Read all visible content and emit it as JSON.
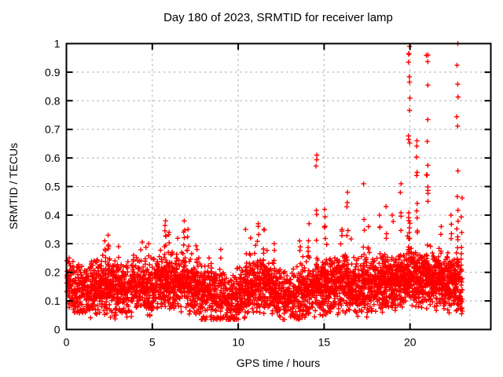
{
  "chart": {
    "title": "Day 180 of 2023, SRMTID for receiver lamp",
    "xlabel": "GPS time / hours",
    "ylabel": "SRMTID / TECUs",
    "colors": {
      "marker": "#ff0000",
      "grid": "#a8a8a8",
      "axis": "#000000",
      "text": "#000000",
      "background": "#ffffff"
    }
  },
  "chart_data": {
    "type": "scatter",
    "title": "Day 180 of 2023, SRMTID for receiver lamp",
    "xlabel": "GPS time / hours",
    "ylabel": "SRMTID / TECUs",
    "xlim": [
      0,
      24.7
    ],
    "ylim": [
      0,
      1
    ],
    "xticks": [
      0,
      5,
      10,
      15,
      20
    ],
    "xtick_labels": [
      "0",
      "5",
      "10",
      "15",
      "20"
    ],
    "yticks": [
      0,
      0.1,
      0.2,
      0.3,
      0.4,
      0.5,
      0.6,
      0.7,
      0.8,
      0.9,
      1
    ],
    "ytick_labels": [
      "0",
      "0.1",
      "0.2",
      "0.3",
      "0.4",
      "0.5",
      "0.6",
      "0.7",
      "0.8",
      "0.9",
      "1"
    ],
    "grid": true,
    "grid_style": "dashed",
    "legend": "none",
    "marker": "plus",
    "marker_color": "#ff0000",
    "marker_size_px": 7,
    "data_hours_range": [
      0,
      23.05
    ],
    "baseline_envelope": {
      "description": "dense scatter band of SRMTID values; mean level sampled every 0.5 h, triangular spread about the mean",
      "step_hours": 0.5,
      "mean": [
        0.15,
        0.14,
        0.125,
        0.14,
        0.155,
        0.15,
        0.14,
        0.13,
        0.14,
        0.15,
        0.15,
        0.16,
        0.16,
        0.165,
        0.165,
        0.14,
        0.13,
        0.12,
        0.11,
        0.1,
        0.12,
        0.14,
        0.155,
        0.155,
        0.14,
        0.11,
        0.1,
        0.12,
        0.13,
        0.14,
        0.15,
        0.15,
        0.155,
        0.155,
        0.15,
        0.15,
        0.155,
        0.16,
        0.165,
        0.175,
        0.18,
        0.17,
        0.175,
        0.165,
        0.165,
        0.155,
        0.14
      ],
      "spread": 0.05,
      "min_value": 0.035
    },
    "spikes": [
      [
        0.15,
        0.25,
        4
      ],
      [
        1.6,
        0.24,
        3
      ],
      [
        2.25,
        0.31,
        6
      ],
      [
        2.45,
        0.33,
        4
      ],
      [
        3.0,
        0.29,
        5
      ],
      [
        3.9,
        0.26,
        3
      ],
      [
        4.8,
        0.3,
        4
      ],
      [
        5.75,
        0.38,
        12
      ],
      [
        5.95,
        0.34,
        6
      ],
      [
        6.85,
        0.38,
        12
      ],
      [
        7.05,
        0.35,
        6
      ],
      [
        7.6,
        0.28,
        5
      ],
      [
        8.3,
        0.25,
        4
      ],
      [
        9.0,
        0.28,
        4
      ],
      [
        10.45,
        0.35,
        8
      ],
      [
        10.7,
        0.32,
        5
      ],
      [
        11.15,
        0.37,
        9
      ],
      [
        11.5,
        0.35,
        7
      ],
      [
        12.1,
        0.3,
        5
      ],
      [
        13.6,
        0.31,
        5
      ],
      [
        14.1,
        0.37,
        7
      ],
      [
        14.55,
        0.61,
        14
      ],
      [
        15.05,
        0.42,
        8
      ],
      [
        16.0,
        0.35,
        5
      ],
      [
        16.35,
        0.48,
        9
      ],
      [
        17.3,
        0.51,
        11
      ],
      [
        17.6,
        0.36,
        5
      ],
      [
        18.25,
        0.4,
        6
      ],
      [
        18.6,
        0.43,
        6
      ],
      [
        19.0,
        0.4,
        5
      ],
      [
        19.45,
        0.51,
        10
      ],
      [
        19.95,
        0.99,
        26
      ],
      [
        20.4,
        0.66,
        10
      ],
      [
        21.0,
        0.96,
        22
      ],
      [
        21.8,
        0.36,
        5
      ],
      [
        22.4,
        0.4,
        6
      ],
      [
        22.75,
        1.0,
        20
      ],
      [
        23.0,
        0.46,
        8
      ]
    ],
    "seed": 180
  }
}
